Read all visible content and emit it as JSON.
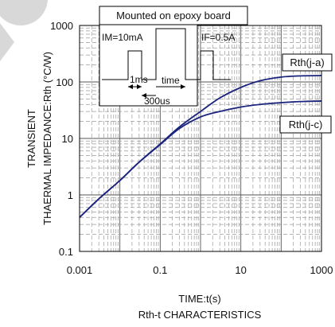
{
  "chart_data": {
    "type": "line",
    "subtitle": "Rth-t CHARACTERISTICS",
    "xlabel": "TIME:t(s)",
    "ylabel_line1": "TRANSIENT",
    "ylabel_line2": "THAERMAL IMPEDANCE:Rth (°C/W)",
    "x_scale": "log",
    "y_scale": "log",
    "xlim": [
      0.001,
      1000
    ],
    "ylim": [
      0.1,
      1000
    ],
    "x_tick_labels": [
      "0.001",
      "0.1",
      "10",
      "1000"
    ],
    "y_tick_labels": [
      "0.1",
      "1",
      "10",
      "100",
      "1000"
    ],
    "grid": true,
    "series": [
      {
        "name": "Rth(j-a)",
        "color": "#1a237e",
        "x": [
          0.001,
          0.003,
          0.01,
          0.03,
          0.1,
          0.3,
          1,
          3,
          10,
          30,
          100,
          300,
          1000
        ],
        "y": [
          0.4,
          0.85,
          1.8,
          3.8,
          8.0,
          16,
          30,
          52,
          80,
          105,
          122,
          128,
          130
        ]
      },
      {
        "name": "Rth(j-c)",
        "color": "#1a237e",
        "x": [
          0.001,
          0.003,
          0.01,
          0.03,
          0.1,
          0.3,
          1,
          3,
          10,
          30,
          100,
          300,
          1000
        ],
        "y": [
          0.4,
          0.85,
          1.8,
          3.8,
          7.8,
          15,
          24,
          30,
          36,
          40,
          43,
          45,
          46
        ]
      }
    ],
    "inset": {
      "title": "Mounted on epoxy board",
      "im_label": "IM=10mA",
      "if_label": "IF=0.5A",
      "t1_label": "1ms",
      "time_label": "time",
      "t2_label": "300us"
    }
  }
}
